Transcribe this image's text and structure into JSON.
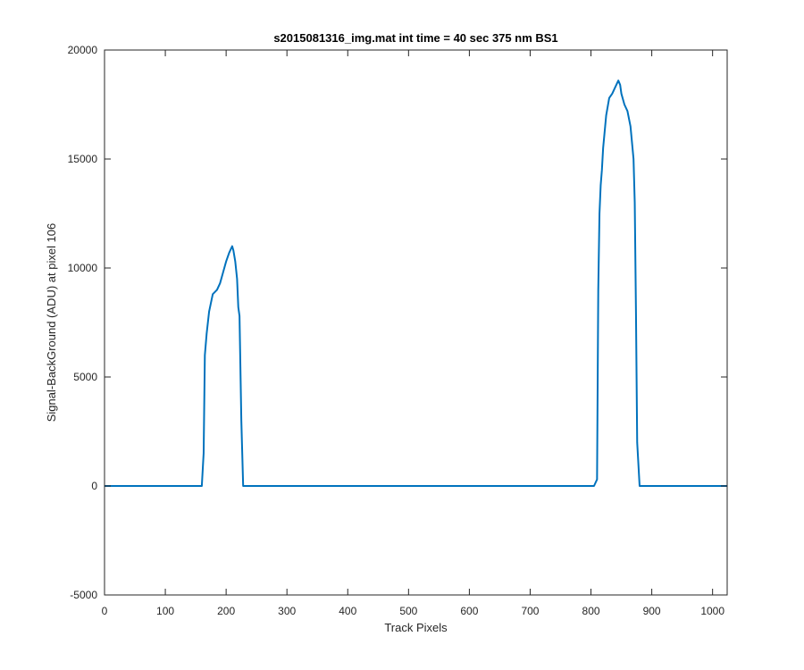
{
  "chart_data": {
    "type": "line",
    "title": "s2015081316_img.mat int time = 40 sec  375 nm BS1",
    "xlabel": "Track Pixels",
    "ylabel": "Signal-BackGround (ADU) at pixel 106",
    "xlim": [
      0,
      1024
    ],
    "ylim": [
      -5000,
      20000
    ],
    "xticks": [
      0,
      100,
      200,
      300,
      400,
      500,
      600,
      700,
      800,
      900,
      1000
    ],
    "yticks": [
      -5000,
      0,
      5000,
      10000,
      15000,
      20000
    ],
    "xtick_labels": [
      "0",
      "100",
      "200",
      "300",
      "400",
      "500",
      "600",
      "700",
      "800",
      "900",
      "1000"
    ],
    "ytick_labels": [
      "-5000",
      "0",
      "5000",
      "10000",
      "15000",
      "20000"
    ],
    "grid": false,
    "legend": "none",
    "series": [
      {
        "color": "#0072BD",
        "x": [
          0,
          100,
          160,
          163,
          165,
          168,
          172,
          178,
          185,
          190,
          195,
          200,
          205,
          210,
          212,
          215,
          218,
          220,
          222,
          225,
          228,
          240,
          400,
          600,
          805,
          810,
          812,
          814,
          816,
          818,
          820,
          825,
          830,
          835,
          840,
          845,
          848,
          850,
          855,
          860,
          865,
          870,
          872,
          874,
          876,
          880,
          900,
          1024
        ],
        "y": [
          0,
          0,
          0,
          1500,
          6000,
          7000,
          8000,
          8800,
          9000,
          9300,
          9800,
          10300,
          10700,
          11000,
          10800,
          10300,
          9500,
          8200,
          7800,
          3000,
          0,
          0,
          0,
          0,
          0,
          300,
          9000,
          12500,
          13800,
          14500,
          15500,
          17000,
          17800,
          18000,
          18300,
          18600,
          18400,
          18000,
          17500,
          17200,
          16500,
          15000,
          13000,
          8000,
          2000,
          0,
          0,
          0
        ]
      }
    ]
  }
}
